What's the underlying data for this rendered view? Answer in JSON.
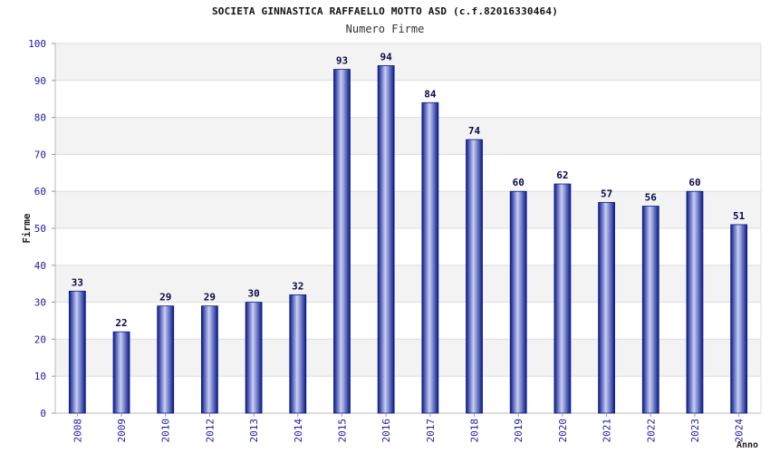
{
  "chart_data": {
    "type": "bar",
    "title": "SOCIETA GINNASTICA RAFFAELLO MOTTO ASD (c.f.82016330464)",
    "subtitle": "Numero Firme",
    "xlabel": "Anno",
    "ylabel": "Firme",
    "categories": [
      "2008",
      "2009",
      "2010",
      "2012",
      "2013",
      "2014",
      "2015",
      "2016",
      "2017",
      "2018",
      "2019",
      "2020",
      "2021",
      "2022",
      "2023",
      "2024"
    ],
    "values": [
      33,
      22,
      29,
      29,
      30,
      32,
      93,
      94,
      84,
      74,
      60,
      62,
      57,
      56,
      60,
      51
    ],
    "ylim": [
      0,
      100
    ],
    "yticks": [
      0,
      10,
      20,
      30,
      40,
      50,
      60,
      70,
      80,
      90,
      100
    ],
    "grid": true,
    "legend": "none",
    "colors": {
      "bar_dark": "#0a1a8a",
      "bar_light": "#c8cff4",
      "band": "#f3f3f3",
      "grid": "#dddddd",
      "tick_text": "#1a1aa6",
      "label_text": "#0a0a4a"
    }
  }
}
